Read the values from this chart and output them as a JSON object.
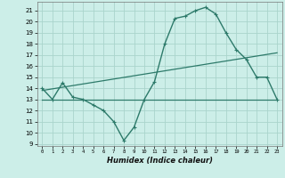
{
  "xlabel": "Humidex (Indice chaleur)",
  "background_color": "#cceee8",
  "grid_color": "#aad4cc",
  "line_color": "#2d7a6a",
  "xlim": [
    -0.5,
    23.5
  ],
  "ylim": [
    8.8,
    21.8
  ],
  "yticks": [
    9,
    10,
    11,
    12,
    13,
    14,
    15,
    16,
    17,
    18,
    19,
    20,
    21
  ],
  "xticks": [
    0,
    1,
    2,
    3,
    4,
    5,
    6,
    7,
    8,
    9,
    10,
    11,
    12,
    13,
    14,
    15,
    16,
    17,
    18,
    19,
    20,
    21,
    22,
    23
  ],
  "curve1_x": [
    0,
    1,
    2,
    3,
    4,
    5,
    6,
    7,
    8,
    9,
    10,
    11,
    12,
    13,
    14,
    15,
    16,
    17,
    18,
    19,
    20,
    21,
    22,
    23
  ],
  "curve1_y": [
    14.0,
    13.0,
    14.5,
    13.2,
    13.0,
    12.5,
    12.0,
    11.0,
    9.3,
    10.5,
    13.0,
    14.6,
    18.0,
    20.3,
    20.5,
    21.0,
    21.3,
    20.7,
    19.0,
    17.5,
    16.6,
    15.0,
    15.0,
    13.0
  ],
  "curve2_x": [
    0,
    23
  ],
  "curve2_y": [
    13.0,
    13.0
  ],
  "curve3_x": [
    0,
    23
  ],
  "curve3_y": [
    13.8,
    17.2
  ]
}
